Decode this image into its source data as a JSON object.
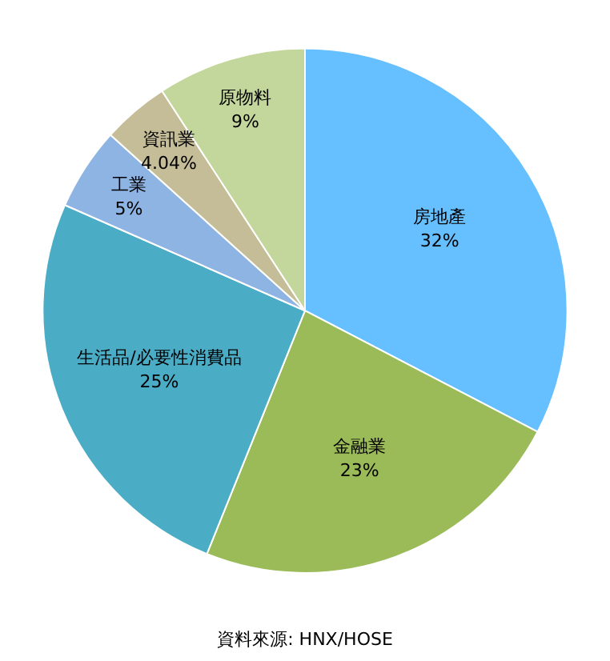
{
  "chart_data": {
    "type": "pie",
    "categories": [
      "房地產",
      "金融業",
      "生活品/必要性消費品",
      "工業",
      "資訊業",
      "原物料"
    ],
    "values": [
      32,
      23,
      25,
      5,
      4.04,
      9
    ],
    "colors": [
      "#66bfff",
      "#9bbb59",
      "#4bacc6",
      "#8eb4e3",
      "#c4bd97",
      "#c3d69b"
    ],
    "value_labels": [
      "32%",
      "23%",
      "25%",
      "5%",
      "4.04%",
      "9%"
    ],
    "legend": false,
    "annotations": [
      "資料來源: HNX/HOSE"
    ]
  }
}
